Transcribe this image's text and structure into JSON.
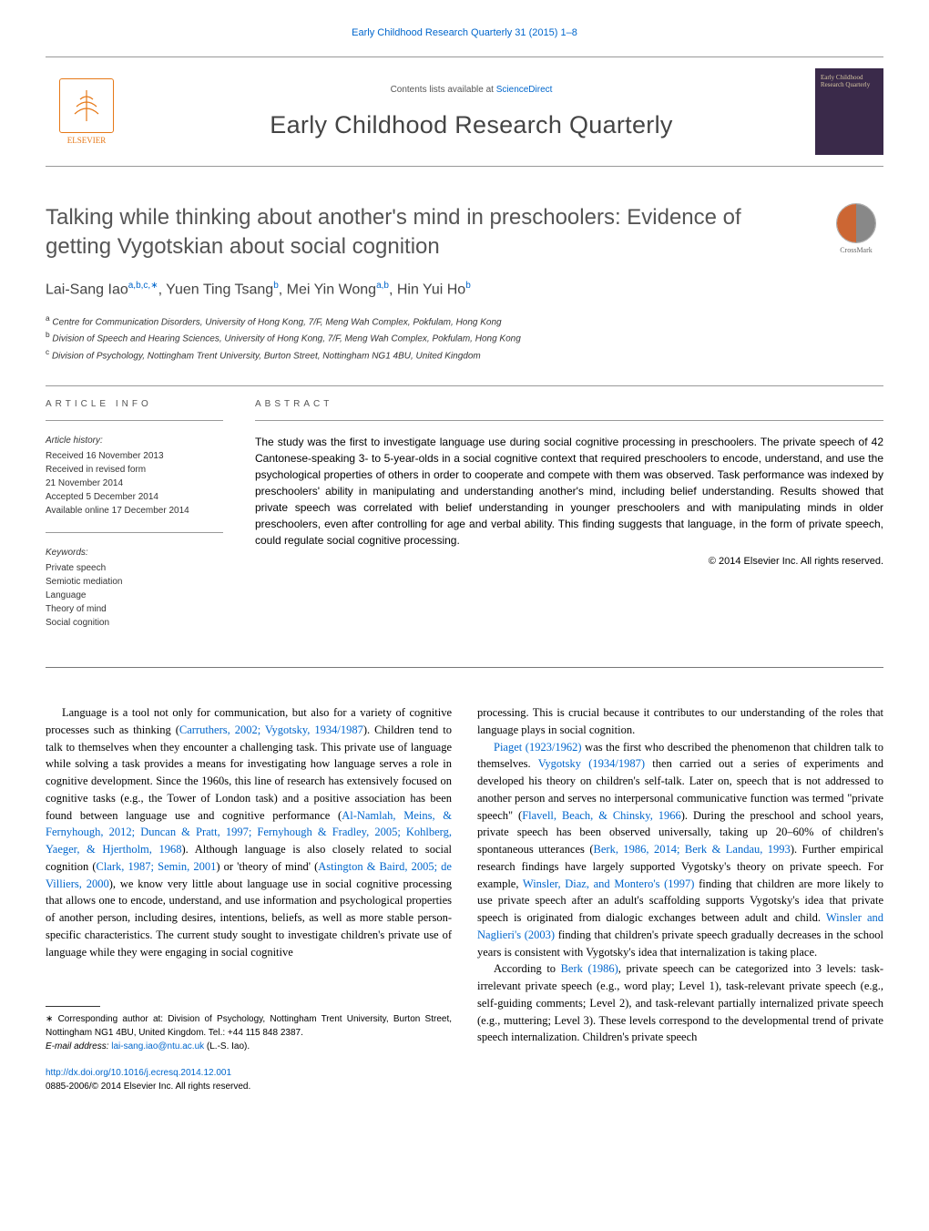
{
  "journal_ref": "Early Childhood Research Quarterly 31 (2015) 1–8",
  "header": {
    "contents_prefix": "Contents lists available at ",
    "contents_link": "ScienceDirect",
    "journal_title": "Early Childhood Research Quarterly",
    "publisher_label": "ELSEVIER",
    "cover_text": "Early Childhood Research Quarterly"
  },
  "article": {
    "title": "Talking while thinking about another's mind in preschoolers: Evidence of getting Vygotskian about social cognition",
    "crossmark": "CrossMark",
    "authors_html": "Lai-Sang Iao<sup>a,b,c,∗</sup>, Yuen Ting Tsang<sup>b</sup>, Mei Yin Wong<sup>a,b</sup>, Hin Yui Ho<sup>b</sup>",
    "affiliations": [
      {
        "sup": "a",
        "text": "Centre for Communication Disorders, University of Hong Kong, 7/F, Meng Wah Complex, Pokfulam, Hong Kong"
      },
      {
        "sup": "b",
        "text": "Division of Speech and Hearing Sciences, University of Hong Kong, 7/F, Meng Wah Complex, Pokfulam, Hong Kong"
      },
      {
        "sup": "c",
        "text": "Division of Psychology, Nottingham Trent University, Burton Street, Nottingham NG1 4BU, United Kingdom"
      }
    ]
  },
  "article_info": {
    "heading": "article info",
    "history_label": "Article history:",
    "history": [
      "Received 16 November 2013",
      "Received in revised form",
      "21 November 2014",
      "Accepted 5 December 2014",
      "Available online 17 December 2014"
    ],
    "keywords_label": "Keywords:",
    "keywords": [
      "Private speech",
      "Semiotic mediation",
      "Language",
      "Theory of mind",
      "Social cognition"
    ]
  },
  "abstract": {
    "heading": "abstract",
    "text": "The study was the first to investigate language use during social cognitive processing in preschoolers. The private speech of 42 Cantonese-speaking 3- to 5-year-olds in a social cognitive context that required preschoolers to encode, understand, and use the psychological properties of others in order to cooperate and compete with them was observed. Task performance was indexed by preschoolers' ability in manipulating and understanding another's mind, including belief understanding. Results showed that private speech was correlated with belief understanding in younger preschoolers and with manipulating minds in older preschoolers, even after controlling for age and verbal ability. This finding suggests that language, in the form of private speech, could regulate social cognitive processing.",
    "copyright": "© 2014 Elsevier Inc. All rights reserved."
  },
  "body": {
    "left": "Language is a tool not only for communication, but also for a variety of cognitive processes such as thinking (<span class=\"ref-link\">Carruthers, 2002; Vygotsky, 1934/1987</span>). Children tend to talk to themselves when they encounter a challenging task. This private use of language while solving a task provides a means for investigating how language serves a role in cognitive development. Since the 1960s, this line of research has extensively focused on cognitive tasks (e.g., the Tower of London task) and a positive association has been found between language use and cognitive performance (<span class=\"ref-link\">Al-Namlah, Meins, &amp; Fernyhough, 2012; Duncan &amp; Pratt, 1997; Fernyhough &amp; Fradley, 2005; Kohlberg, Yaeger, &amp; Hjertholm, 1968</span>). Although language is also closely related to social cognition (<span class=\"ref-link\">Clark, 1987; Semin, 2001</span>) or 'theory of mind' (<span class=\"ref-link\">Astington &amp; Baird, 2005; de Villiers, 2000</span>), we know very little about language use in social cognitive processing that allows one to encode, understand, and use information and psychological properties of another person, including desires, intentions, beliefs, as well as more stable person-specific characteristics. The current study sought to investigate children's private use of language while they were engaging in social cognitive",
    "right_p1": "processing. This is crucial because it contributes to our understanding of the roles that language plays in social cognition.",
    "right_p2": "<span class=\"ref-link\">Piaget (1923/1962)</span> was the first who described the phenomenon that children talk to themselves. <span class=\"ref-link\">Vygotsky (1934/1987)</span> then carried out a series of experiments and developed his theory on children's self-talk. Later on, speech that is not addressed to another person and serves no interpersonal communicative function was termed \"private speech\" (<span class=\"ref-link\">Flavell, Beach, &amp; Chinsky, 1966</span>). During the preschool and school years, private speech has been observed universally, taking up 20–60% of children's spontaneous utterances (<span class=\"ref-link\">Berk, 1986, 2014; Berk &amp; Landau, 1993</span>). Further empirical research findings have largely supported Vygotsky's theory on private speech. For example, <span class=\"ref-link\">Winsler, Diaz, and Montero's (1997)</span> finding that children are more likely to use private speech after an adult's scaffolding supports Vygotsky's idea that private speech is originated from dialogic exchanges between adult and child. <span class=\"ref-link\">Winsler and Naglieri's (2003)</span> finding that children's private speech gradually decreases in the school years is consistent with Vygotsky's idea that internalization is taking place.",
    "right_p3": "According to <span class=\"ref-link\">Berk (1986)</span>, private speech can be categorized into 3 levels: task-irrelevant private speech (e.g., word play; Level 1), task-relevant private speech (e.g., self-guiding comments; Level 2), and task-relevant partially internalized private speech (e.g., muttering; Level 3). These levels correspond to the developmental trend of private speech internalization. Children's private speech"
  },
  "footer": {
    "corr": "∗ Corresponding author at: Division of Psychology, Nottingham Trent University, Burton Street, Nottingham NG1 4BU, United Kingdom. Tel.: +44 115 848 2387.",
    "email_label": "E-mail address: ",
    "email": "lai-sang.iao@ntu.ac.uk",
    "email_suffix": " (L.-S. Iao).",
    "doi": "http://dx.doi.org/10.1016/j.ecresq.2014.12.001",
    "issn": "0885-2006/© 2014 Elsevier Inc. All rights reserved."
  },
  "colors": {
    "link": "#0066cc",
    "text": "#000000",
    "muted": "#555555",
    "elsevier": "#e67817",
    "cover_bg": "#3a2a4a",
    "cover_text": "#d4c5a0"
  },
  "typography": {
    "body_pt": 12.5,
    "title_pt": 24,
    "journal_title_pt": 27,
    "authors_pt": 16,
    "meta_pt": 10,
    "abstract_pt": 12
  }
}
